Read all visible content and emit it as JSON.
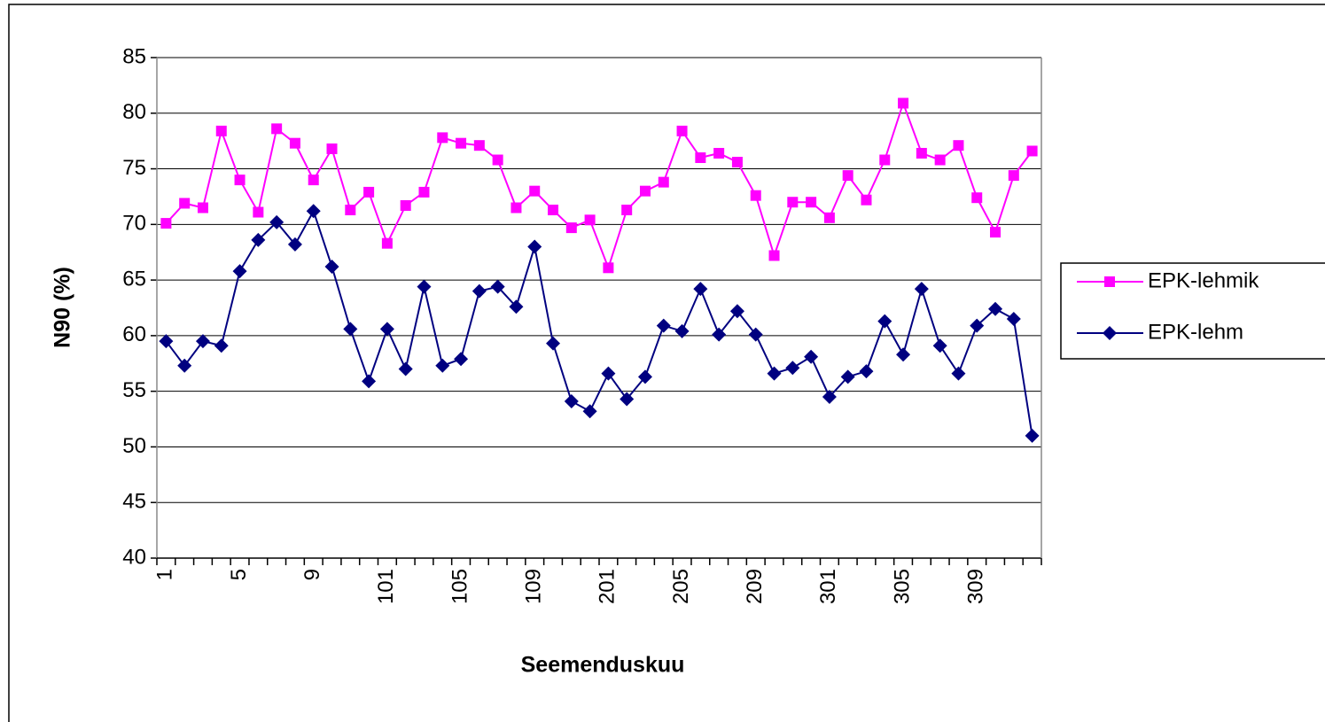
{
  "chart_data": {
    "type": "line",
    "x_label": "Seemenduskuu",
    "y_label": "N90 (%)",
    "categories": [
      "1",
      null,
      null,
      null,
      "5",
      null,
      null,
      null,
      "9",
      null,
      null,
      null,
      "101",
      null,
      null,
      null,
      "105",
      null,
      null,
      null,
      "109",
      null,
      null,
      null,
      "201",
      null,
      null,
      null,
      "205",
      null,
      null,
      null,
      "209",
      null,
      null,
      null,
      "301",
      null,
      null,
      null,
      "305",
      null,
      null,
      null,
      "309",
      null,
      null,
      null
    ],
    "series": [
      {
        "name": "EPK-lehmik",
        "color": "#ff00ff",
        "marker": "square",
        "values": [
          70.1,
          71.9,
          71.5,
          78.4,
          74.0,
          71.1,
          78.6,
          77.3,
          74.0,
          76.8,
          71.3,
          72.9,
          68.3,
          71.7,
          72.9,
          77.8,
          77.3,
          77.1,
          75.8,
          71.5,
          73.0,
          71.3,
          69.7,
          70.4,
          66.1,
          71.3,
          73.0,
          73.8,
          78.4,
          76.0,
          76.4,
          75.6,
          72.6,
          67.2,
          72.0,
          72.0,
          70.6,
          74.4,
          72.2,
          75.8,
          80.9,
          76.4,
          75.8,
          77.1,
          72.4,
          69.3,
          74.4,
          76.6
        ]
      },
      {
        "name": "EPK-lehm",
        "color": "#000080",
        "marker": "diamond",
        "values": [
          59.5,
          57.3,
          59.5,
          59.1,
          65.8,
          68.6,
          70.2,
          68.2,
          71.2,
          66.2,
          60.6,
          55.9,
          60.6,
          57.0,
          64.4,
          57.3,
          57.9,
          64.0,
          64.4,
          62.6,
          68.0,
          59.3,
          54.1,
          53.2,
          56.6,
          54.3,
          56.3,
          60.9,
          60.4,
          64.2,
          60.1,
          62.2,
          60.1,
          56.6,
          57.1,
          58.1,
          54.5,
          56.3,
          56.8,
          61.3,
          58.3,
          64.2,
          59.1,
          56.6,
          60.9,
          62.4,
          61.5,
          51.0
        ]
      }
    ],
    "ylim": [
      40,
      85
    ],
    "yticks": [
      40,
      45,
      50,
      55,
      60,
      65,
      70,
      75,
      80,
      85
    ],
    "grid": true,
    "legend": "right"
  }
}
